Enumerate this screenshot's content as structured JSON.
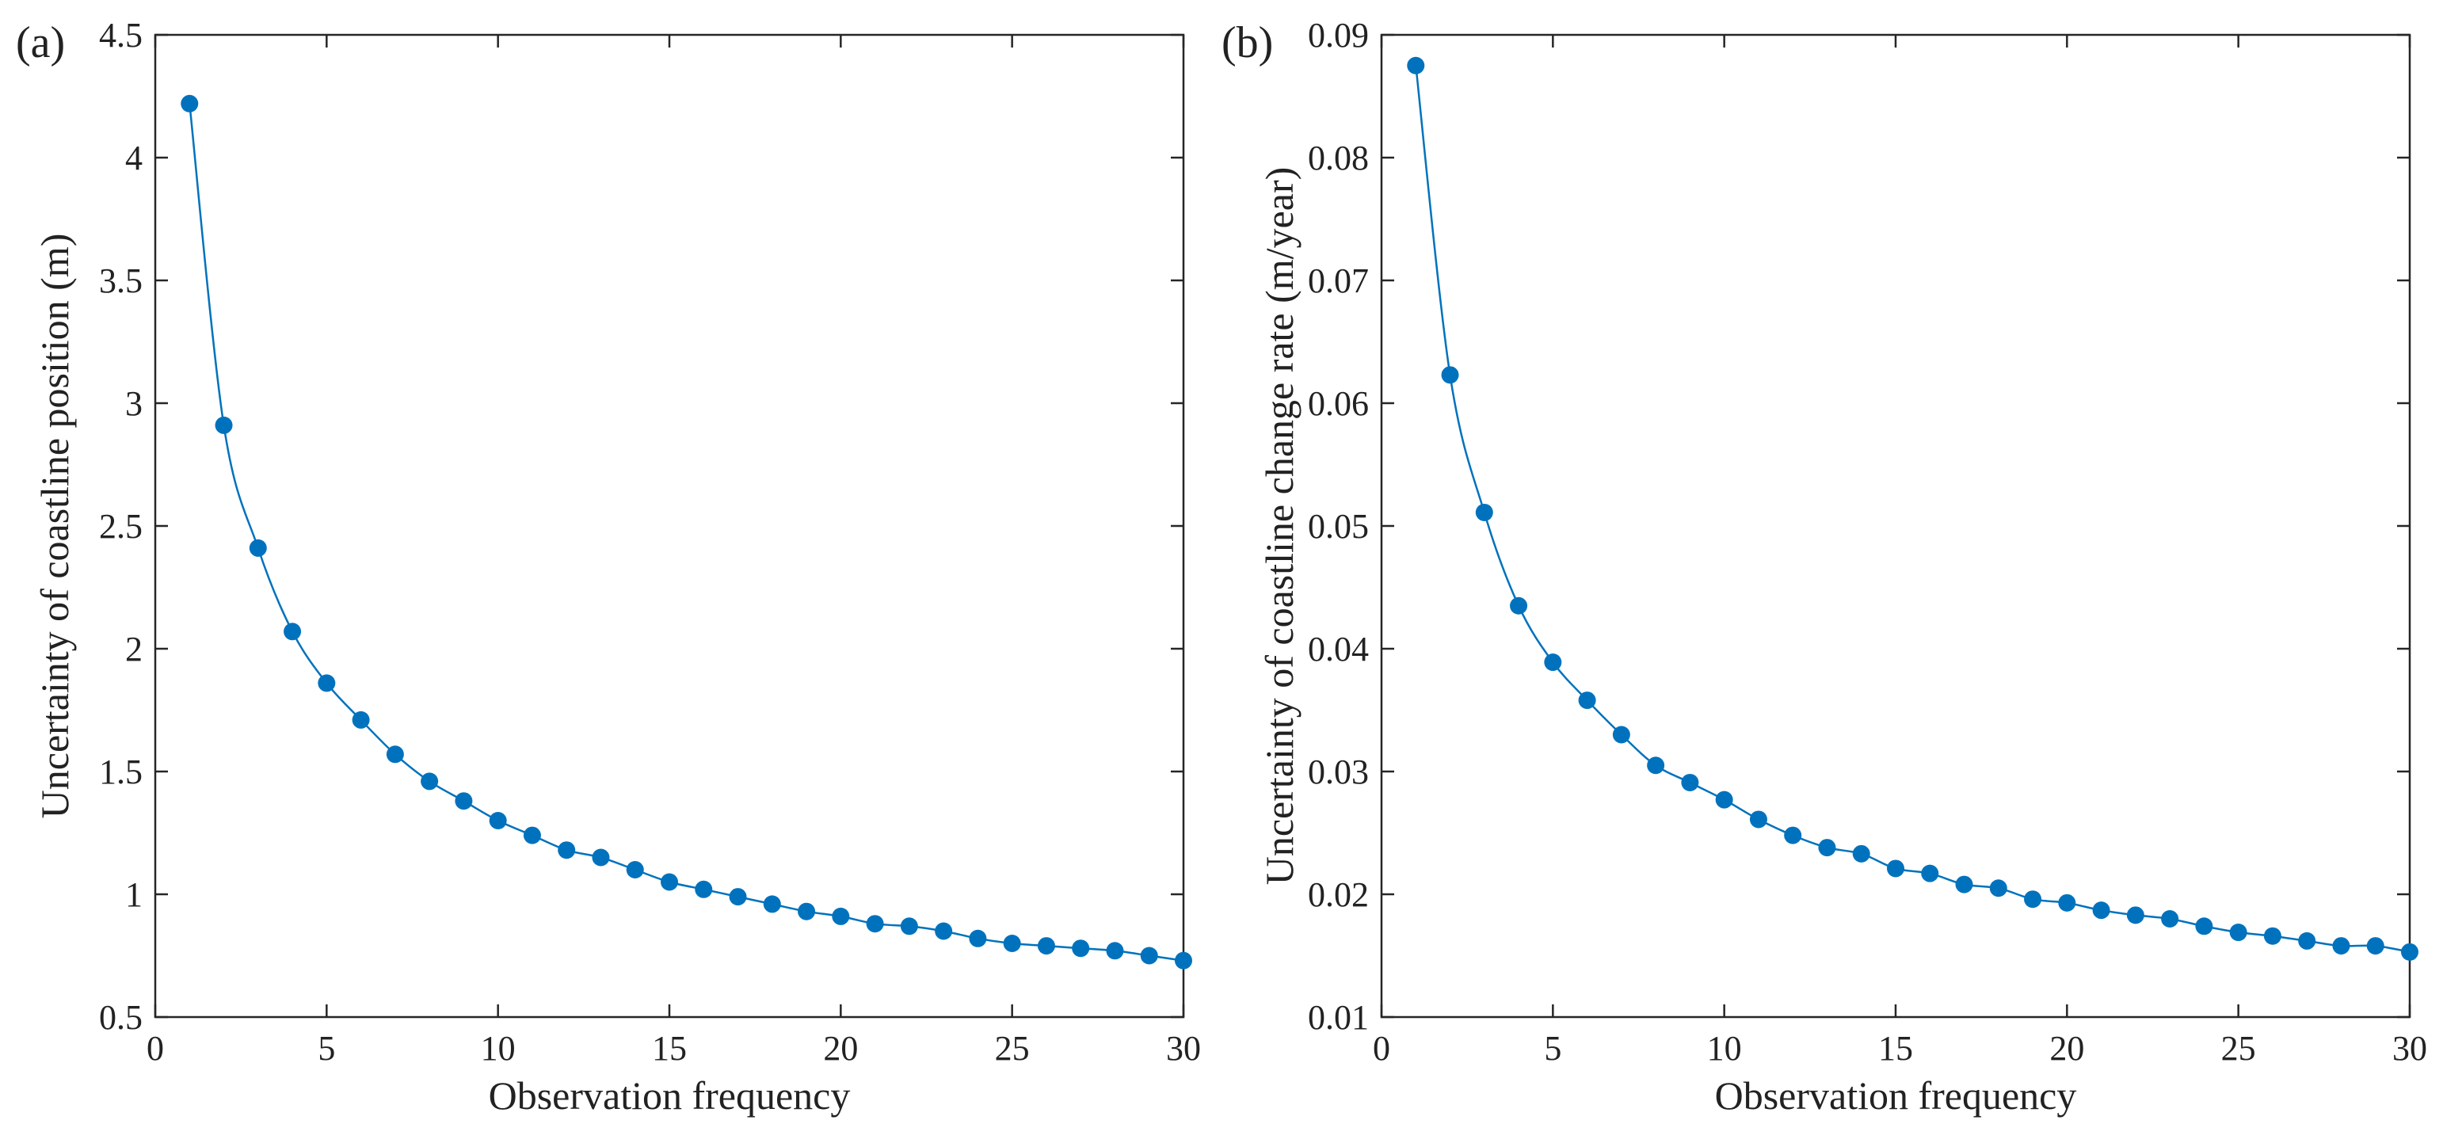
{
  "colors": {
    "series": "#0072BD",
    "axis": "#262626",
    "text": "#222222"
  },
  "chart_data": [
    {
      "type": "line",
      "panel_label": "(a)",
      "title": "",
      "xlabel": "Observation frequency",
      "ylabel": "Uncertainty of coastline position (m)",
      "xlim": [
        0,
        30
      ],
      "ylim": [
        0.5,
        4.5
      ],
      "xticks": [
        0,
        5,
        10,
        15,
        20,
        25,
        30
      ],
      "xtick_labels": [
        "0",
        "5",
        "10",
        "15",
        "20",
        "25",
        "30"
      ],
      "yticks": [
        0.5,
        1,
        1.5,
        2,
        2.5,
        3,
        3.5,
        4,
        4.5
      ],
      "ytick_labels": [
        "0.5",
        "1",
        "1.5",
        "2",
        "2.5",
        "3",
        "3.5",
        "4",
        "4.5"
      ],
      "grid": false,
      "marker": "filled-circle",
      "series": [
        {
          "name": "uncertainty",
          "x": [
            1,
            2,
            3,
            4,
            5,
            6,
            7,
            8,
            9,
            10,
            11,
            12,
            13,
            14,
            15,
            16,
            17,
            18,
            19,
            20,
            21,
            22,
            23,
            24,
            25,
            26,
            27,
            28,
            29,
            30
          ],
          "y": [
            4.22,
            2.91,
            2.41,
            2.07,
            1.86,
            1.71,
            1.57,
            1.46,
            1.38,
            1.3,
            1.24,
            1.18,
            1.15,
            1.1,
            1.05,
            1.02,
            0.99,
            0.96,
            0.93,
            0.91,
            0.88,
            0.87,
            0.85,
            0.82,
            0.8,
            0.79,
            0.78,
            0.77,
            0.75,
            0.73
          ]
        }
      ]
    },
    {
      "type": "line",
      "panel_label": "(b)",
      "title": "",
      "xlabel": "Observation frequency",
      "ylabel": "Uncertainty of coastline change rate (m/year)",
      "xlim": [
        0,
        30
      ],
      "ylim": [
        0.01,
        0.09
      ],
      "xticks": [
        0,
        5,
        10,
        15,
        20,
        25,
        30
      ],
      "xtick_labels": [
        "0",
        "5",
        "10",
        "15",
        "20",
        "25",
        "30"
      ],
      "yticks": [
        0.01,
        0.02,
        0.03,
        0.04,
        0.05,
        0.06,
        0.07,
        0.08,
        0.09
      ],
      "ytick_labels": [
        "0.01",
        "0.02",
        "0.03",
        "0.04",
        "0.05",
        "0.06",
        "0.07",
        "0.08",
        "0.09"
      ],
      "grid": false,
      "marker": "filled-circle",
      "series": [
        {
          "name": "uncertainty",
          "x": [
            1,
            2,
            3,
            4,
            5,
            6,
            7,
            8,
            9,
            10,
            11,
            12,
            13,
            14,
            15,
            16,
            17,
            18,
            19,
            20,
            21,
            22,
            23,
            24,
            25,
            26,
            27,
            28,
            29,
            30
          ],
          "y": [
            0.0875,
            0.0623,
            0.0511,
            0.0435,
            0.0389,
            0.0358,
            0.033,
            0.0305,
            0.0291,
            0.0277,
            0.0261,
            0.0248,
            0.0238,
            0.0233,
            0.0221,
            0.0217,
            0.0208,
            0.0205,
            0.0196,
            0.0193,
            0.0187,
            0.0183,
            0.018,
            0.0174,
            0.0169,
            0.0166,
            0.0162,
            0.0158,
            0.0158,
            0.0153
          ]
        }
      ]
    }
  ]
}
